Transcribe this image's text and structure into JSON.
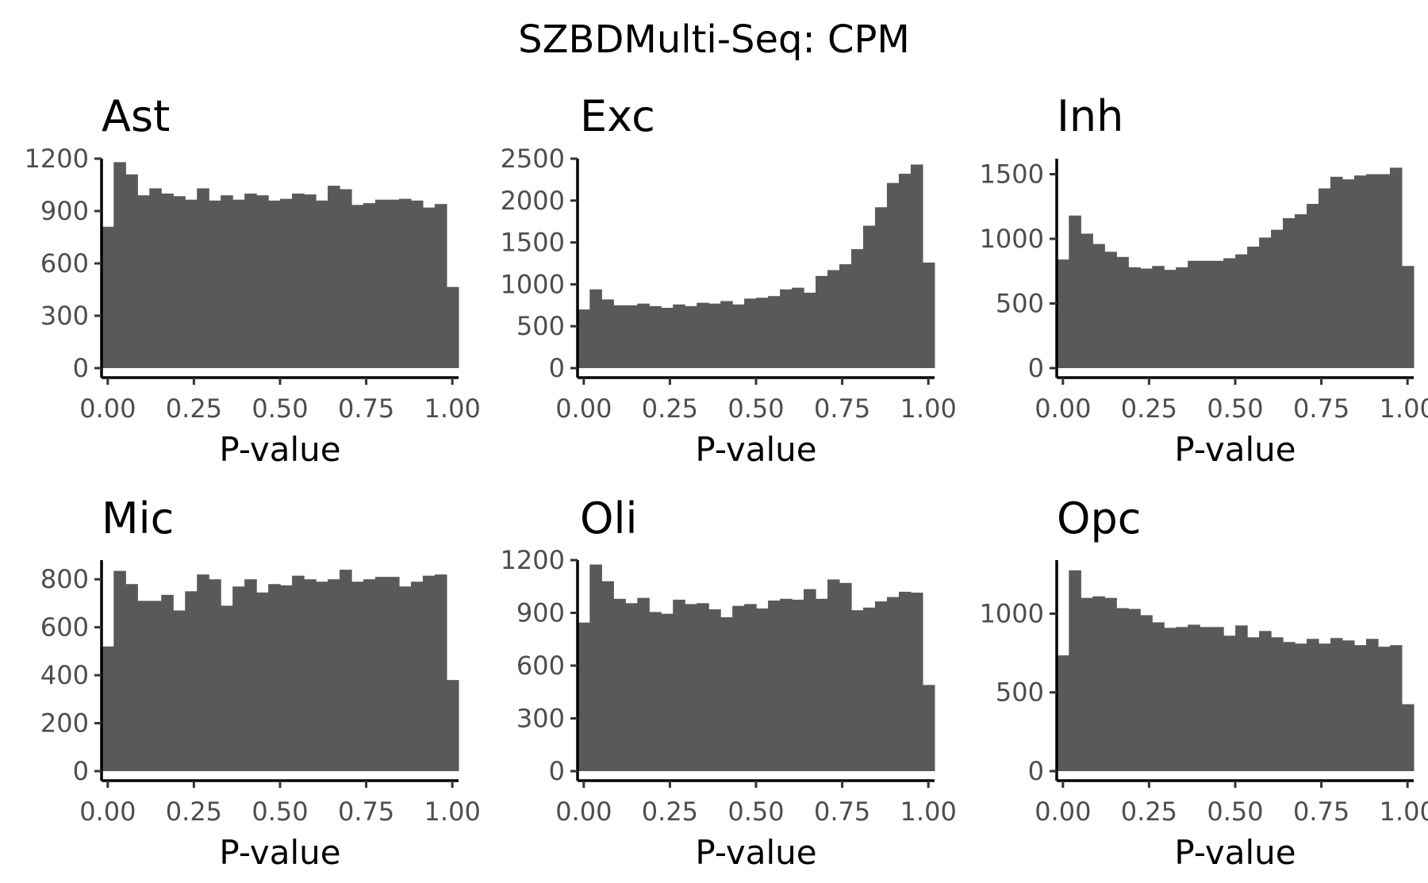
{
  "title": "SZBDMulti-Seq: CPM",
  "chart_data": [
    {
      "type": "bar",
      "facet": "Ast",
      "xlabel": "P-value",
      "ylabel": "",
      "xlim": [
        -0.018,
        1.018
      ],
      "ylim": [
        0,
        1200
      ],
      "xticks": [
        "0.00",
        "0.25",
        "0.50",
        "0.75",
        "1.00"
      ],
      "yticks": [
        "0",
        "300",
        "600",
        "900",
        "1200"
      ],
      "ytick_values": [
        0,
        300,
        600,
        900,
        1200
      ],
      "bin_width": 0.0345,
      "values": [
        810,
        1180,
        1110,
        990,
        1030,
        1000,
        985,
        965,
        1030,
        960,
        990,
        965,
        1000,
        990,
        960,
        970,
        1000,
        995,
        960,
        1045,
        1025,
        935,
        945,
        965,
        965,
        970,
        960,
        920,
        940,
        465
      ]
    },
    {
      "type": "bar",
      "facet": "Exc",
      "xlabel": "P-value",
      "ylabel": "",
      "xlim": [
        -0.018,
        1.018
      ],
      "ylim": [
        0,
        2500
      ],
      "xticks": [
        "0.00",
        "0.25",
        "0.50",
        "0.75",
        "1.00"
      ],
      "yticks": [
        "0",
        "500",
        "1000",
        "1500",
        "2000",
        "2500"
      ],
      "ytick_values": [
        0,
        500,
        1000,
        1500,
        2000,
        2500
      ],
      "bin_width": 0.0345,
      "values": [
        700,
        940,
        820,
        750,
        750,
        770,
        740,
        720,
        760,
        740,
        780,
        770,
        800,
        760,
        830,
        840,
        860,
        940,
        960,
        900,
        1100,
        1170,
        1240,
        1420,
        1700,
        1920,
        2210,
        2320,
        2430,
        1260
      ]
    },
    {
      "type": "bar",
      "facet": "Inh",
      "xlabel": "P-value",
      "ylabel": "",
      "xlim": [
        -0.018,
        1.018
      ],
      "ylim": [
        0,
        1620
      ],
      "xticks": [
        "0.00",
        "0.25",
        "0.50",
        "0.75",
        "1.00"
      ],
      "yticks": [
        "0",
        "500",
        "1000",
        "1500"
      ],
      "ytick_values": [
        0,
        500,
        1000,
        1500
      ],
      "bin_width": 0.0345,
      "values": [
        840,
        1180,
        1040,
        960,
        900,
        860,
        780,
        770,
        790,
        760,
        780,
        830,
        830,
        830,
        850,
        880,
        940,
        1010,
        1070,
        1160,
        1190,
        1270,
        1390,
        1480,
        1460,
        1490,
        1500,
        1500,
        1550,
        790
      ]
    },
    {
      "type": "bar",
      "facet": "Mic",
      "xlabel": "P-value",
      "ylabel": "",
      "xlim": [
        -0.018,
        1.018
      ],
      "ylim": [
        0,
        880
      ],
      "xticks": [
        "0.00",
        "0.25",
        "0.50",
        "0.75",
        "1.00"
      ],
      "yticks": [
        "0",
        "200",
        "400",
        "600",
        "800"
      ],
      "ytick_values": [
        0,
        200,
        400,
        600,
        800
      ],
      "bin_width": 0.0345,
      "values": [
        520,
        835,
        780,
        710,
        710,
        735,
        670,
        750,
        820,
        800,
        690,
        770,
        800,
        745,
        780,
        775,
        815,
        800,
        790,
        800,
        840,
        790,
        800,
        810,
        810,
        770,
        790,
        815,
        820,
        380
      ]
    },
    {
      "type": "bar",
      "facet": "Oli",
      "xlabel": "P-value",
      "ylabel": "",
      "xlim": [
        -0.018,
        1.018
      ],
      "ylim": [
        0,
        1200
      ],
      "xticks": [
        "0.00",
        "0.25",
        "0.50",
        "0.75",
        "1.00"
      ],
      "yticks": [
        "0",
        "300",
        "600",
        "900",
        "1200"
      ],
      "ytick_values": [
        0,
        300,
        600,
        900,
        1200
      ],
      "bin_width": 0.0345,
      "values": [
        845,
        1175,
        1080,
        980,
        955,
        985,
        905,
        895,
        975,
        950,
        955,
        920,
        875,
        940,
        950,
        925,
        970,
        980,
        975,
        1035,
        980,
        1090,
        1070,
        915,
        930,
        965,
        990,
        1020,
        1015,
        490
      ]
    },
    {
      "type": "bar",
      "facet": "Opc",
      "xlabel": "P-value",
      "ylabel": "",
      "xlim": [
        -0.018,
        1.018
      ],
      "ylim": [
        0,
        1340
      ],
      "xticks": [
        "0.00",
        "0.25",
        "0.50",
        "0.75",
        "1.00"
      ],
      "yticks": [
        "0",
        "500",
        "1000"
      ],
      "ytick_values": [
        0,
        500,
        1000
      ],
      "bin_width": 0.0345,
      "values": [
        735,
        1275,
        1100,
        1110,
        1100,
        1035,
        1030,
        990,
        945,
        910,
        915,
        930,
        915,
        915,
        860,
        925,
        850,
        890,
        850,
        820,
        810,
        840,
        810,
        845,
        830,
        800,
        840,
        790,
        800,
        425
      ]
    }
  ]
}
